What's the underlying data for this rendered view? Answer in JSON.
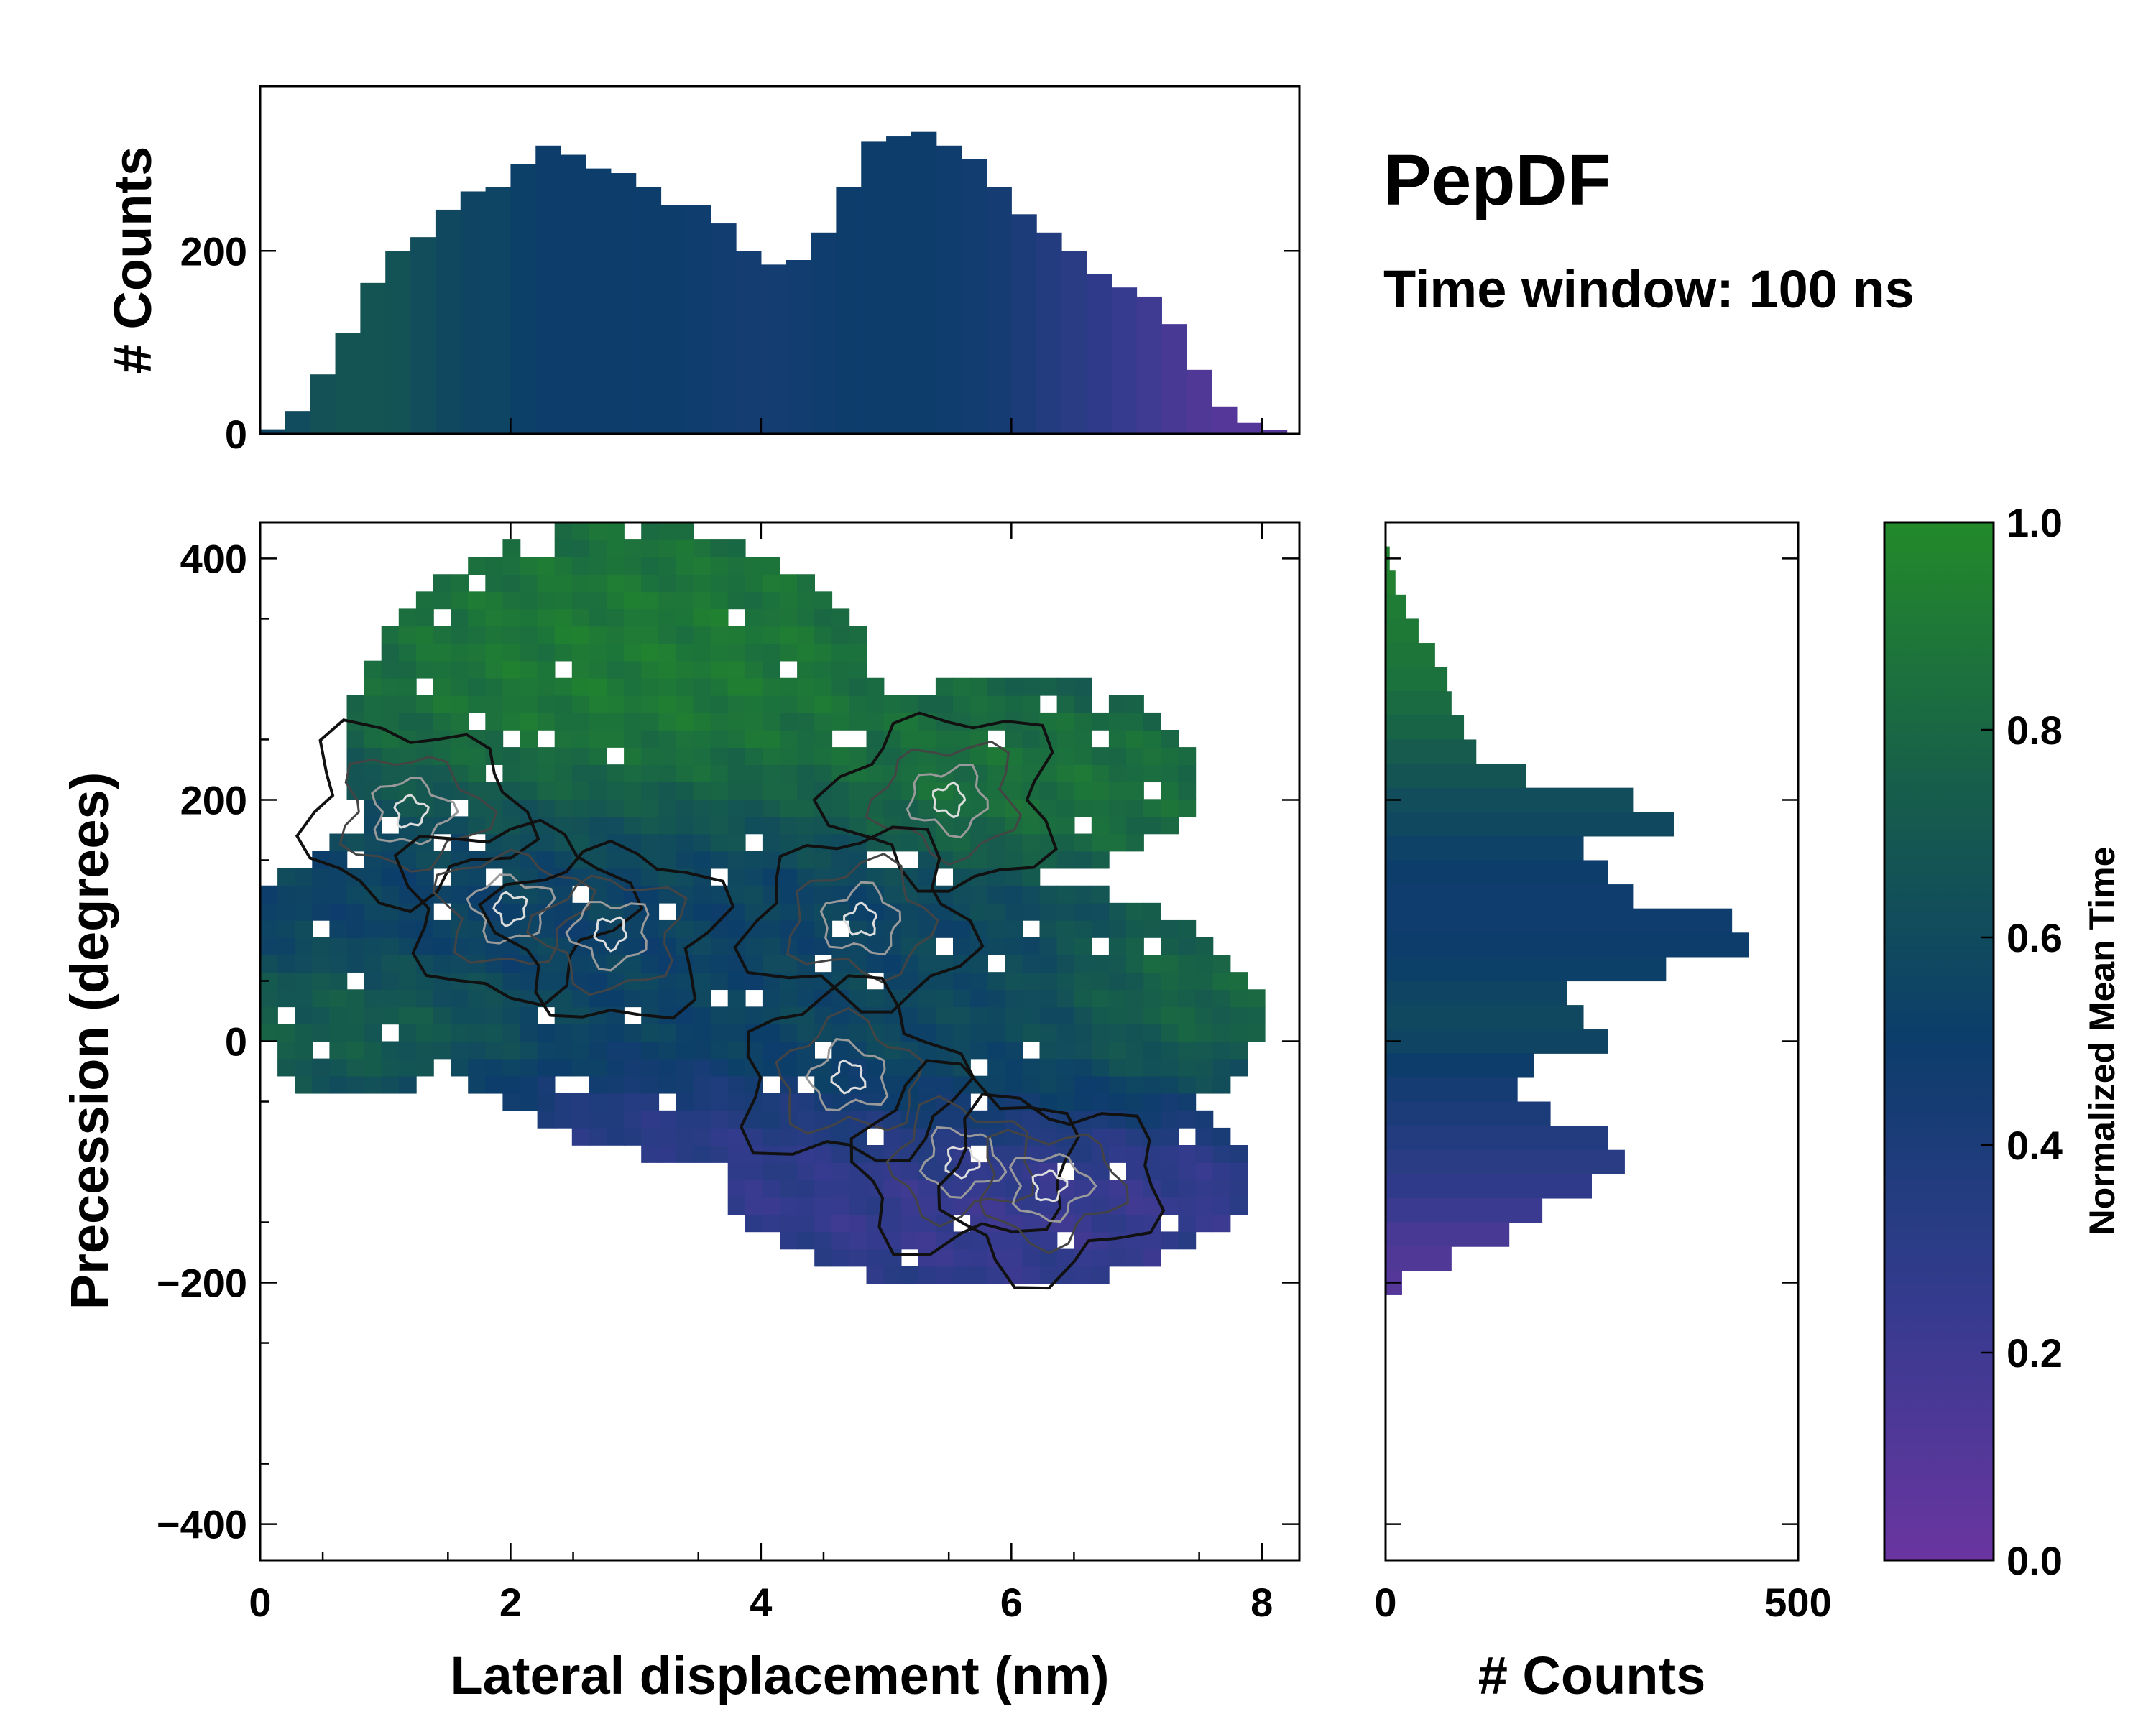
{
  "annotation": {
    "title": "PepDF",
    "subtitle": "Time window: 100 ns"
  },
  "colors": {
    "low": "#6a35a0",
    "mid": "#0c3d6b",
    "high": "#238a2a",
    "contour_outer": "#111111",
    "contour_inner": "#9a9a9a"
  },
  "chart_data": [
    {
      "id": "top-histogram",
      "type": "bar",
      "title": "",
      "xlabel": "",
      "ylabel": "# Counts",
      "xlim": [
        0,
        8.3
      ],
      "ylim": [
        0,
        380
      ],
      "y_ticks": [
        0,
        200
      ],
      "y_tick_labels": [
        "0",
        "200"
      ],
      "bins_x": [
        0.1,
        0.3,
        0.5,
        0.7,
        0.9,
        1.1,
        1.3,
        1.5,
        1.7,
        1.9,
        2.1,
        2.3,
        2.5,
        2.7,
        2.9,
        3.1,
        3.3,
        3.5,
        3.7,
        3.9,
        4.1,
        4.3,
        4.5,
        4.7,
        4.9,
        5.1,
        5.3,
        5.5,
        5.7,
        5.9,
        6.1,
        6.3,
        6.5,
        6.7,
        6.9,
        7.1,
        7.3,
        7.5,
        7.7,
        7.9,
        8.1
      ],
      "values": [
        5,
        25,
        65,
        110,
        165,
        200,
        215,
        245,
        265,
        270,
        295,
        315,
        305,
        290,
        285,
        270,
        250,
        250,
        230,
        200,
        185,
        190,
        220,
        270,
        320,
        325,
        330,
        315,
        300,
        270,
        240,
        220,
        200,
        175,
        160,
        150,
        120,
        70,
        30,
        12,
        4
      ],
      "color_by": "normalized_mean_time",
      "color_values": [
        0.55,
        0.6,
        0.65,
        0.68,
        0.68,
        0.66,
        0.62,
        0.58,
        0.56,
        0.55,
        0.52,
        0.5,
        0.5,
        0.5,
        0.5,
        0.5,
        0.5,
        0.48,
        0.46,
        0.45,
        0.45,
        0.46,
        0.48,
        0.5,
        0.5,
        0.5,
        0.5,
        0.48,
        0.46,
        0.44,
        0.4,
        0.36,
        0.32,
        0.28,
        0.24,
        0.2,
        0.16,
        0.12,
        0.1,
        0.1,
        0.1
      ]
    },
    {
      "id": "main-heatmap",
      "type": "heatmap",
      "title": "",
      "xlabel": "Lateral displacement (nm)",
      "ylabel": "Precession (degrees)",
      "xlim": [
        0,
        8.3
      ],
      "ylim": [
        -430,
        430
      ],
      "x_ticks": [
        0,
        2,
        4,
        6,
        8
      ],
      "x_tick_labels": [
        "0",
        "2",
        "4",
        "6",
        "8"
      ],
      "y_ticks": [
        400,
        200,
        0,
        -200,
        -400
      ],
      "y_tick_labels": [
        "400",
        "200",
        "0",
        "−200",
        "−400"
      ],
      "value_label": "Normalized Mean Time",
      "regions": [
        {
          "name": "upper-left lobe",
          "x": 3.0,
          "y": 300,
          "sx": 1.3,
          "sy": 80,
          "value": 0.95
        },
        {
          "name": "upper-right lobe",
          "x": 6.2,
          "y": 210,
          "sx": 1.0,
          "sy": 40,
          "value": 0.9
        },
        {
          "name": "central basin",
          "x": 2.8,
          "y": 100,
          "sx": 1.8,
          "sy": 70,
          "value": 0.5
        },
        {
          "name": "left edge band",
          "x": 0.8,
          "y": 20,
          "sx": 0.8,
          "sy": 30,
          "value": 0.8
        },
        {
          "name": "middle band",
          "x": 5.0,
          "y": 0,
          "sx": 1.6,
          "sy": 60,
          "value": 0.6
        },
        {
          "name": "lower lobe",
          "x": 6.0,
          "y": -130,
          "sx": 1.5,
          "sy": 50,
          "value": 0.15
        },
        {
          "name": "lower-left patch",
          "x": 3.5,
          "y": -80,
          "sx": 1.0,
          "sy": 40,
          "value": 0.2
        },
        {
          "name": "right tail",
          "x": 7.4,
          "y": 40,
          "sx": 0.6,
          "sy": 40,
          "value": 0.85
        }
      ],
      "density_peaks": [
        {
          "x": 1.2,
          "y": 190
        },
        {
          "x": 2.0,
          "y": 110
        },
        {
          "x": 2.8,
          "y": 90
        },
        {
          "x": 5.5,
          "y": 200
        },
        {
          "x": 4.8,
          "y": 100
        },
        {
          "x": 4.7,
          "y": -30
        },
        {
          "x": 5.6,
          "y": -100
        },
        {
          "x": 6.3,
          "y": -120
        }
      ]
    },
    {
      "id": "right-histogram",
      "type": "bar",
      "orientation": "horizontal",
      "title": "",
      "xlabel": "# Counts",
      "ylabel": "",
      "xlim": [
        0,
        500
      ],
      "ylim": [
        -430,
        430
      ],
      "x_ticks": [
        0,
        500
      ],
      "x_tick_labels": [
        "0",
        "500"
      ],
      "bins_y": [
        400,
        380,
        360,
        340,
        320,
        300,
        280,
        260,
        240,
        220,
        200,
        180,
        160,
        140,
        120,
        100,
        80,
        60,
        40,
        20,
        0,
        -20,
        -40,
        -60,
        -80,
        -100,
        -120,
        -140,
        -160,
        -180,
        -200
      ],
      "values": [
        5,
        12,
        25,
        40,
        60,
        75,
        80,
        95,
        110,
        170,
        300,
        350,
        240,
        270,
        300,
        420,
        440,
        340,
        220,
        240,
        270,
        180,
        160,
        200,
        270,
        290,
        250,
        190,
        150,
        80,
        20
      ],
      "color_by": "normalized_mean_time",
      "color_values": [
        0.95,
        0.95,
        0.92,
        0.9,
        0.88,
        0.86,
        0.82,
        0.78,
        0.72,
        0.68,
        0.62,
        0.58,
        0.54,
        0.5,
        0.48,
        0.48,
        0.5,
        0.52,
        0.56,
        0.58,
        0.56,
        0.5,
        0.44,
        0.4,
        0.36,
        0.32,
        0.28,
        0.22,
        0.16,
        0.12,
        0.1
      ]
    },
    {
      "id": "colorbar",
      "type": "colorbar",
      "label": "Normalized Mean Time",
      "range": [
        0,
        1
      ],
      "ticks": [
        0.0,
        0.2,
        0.4,
        0.6,
        0.8,
        1.0
      ],
      "tick_labels": [
        "0.0",
        "0.2",
        "0.4",
        "0.6",
        "0.8",
        "1.0"
      ]
    }
  ]
}
